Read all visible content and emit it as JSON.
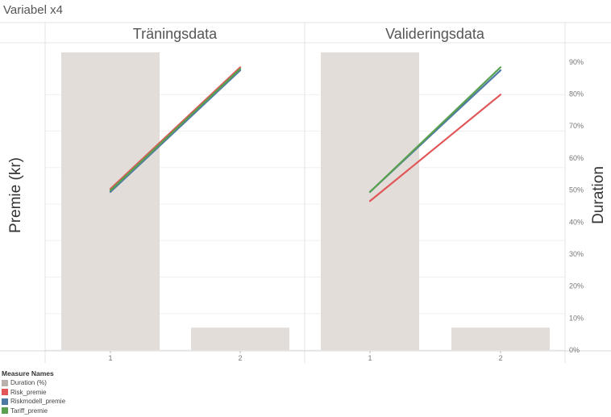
{
  "title": "Variabel x4",
  "chart_data": {
    "type": "bar+line",
    "panels": [
      "Träningsdata",
      "Valideringsdata"
    ],
    "categories": [
      "1",
      "2"
    ],
    "left_axis_title": "Premie (kr)",
    "right_axis_title": "Duration",
    "right_axis": {
      "range": [
        0,
        95
      ],
      "ticks": [
        0,
        10,
        20,
        30,
        40,
        50,
        60,
        70,
        80,
        90
      ],
      "tick_suffix": "%"
    },
    "left_axis_range": [
      0,
      100
    ],
    "bars": {
      "name": "Duration (%)",
      "color": "#e2ddd9",
      "values": {
        "Träningsdata": [
          93,
          7
        ],
        "Valideringsdata": [
          93,
          7
        ]
      }
    },
    "series": [
      {
        "name": "Risk_premie",
        "color": "#e15759",
        "values": {
          "Träningsdata": [
            53,
            93
          ],
          "Valideringsdata": [
            49,
            84
          ]
        }
      },
      {
        "name": "Riskmodell_premie",
        "color": "#4e79a7",
        "values": {
          "Träningsdata": [
            52,
            92
          ],
          "Valideringsdata": [
            52,
            92
          ]
        }
      },
      {
        "name": "Tariff_premie",
        "color": "#59a14f",
        "values": {
          "Träningsdata": [
            52.5,
            92.5
          ],
          "Valideringsdata": [
            52,
            93
          ]
        }
      }
    ],
    "legend": {
      "title": "Measure Names",
      "position": "bottom-left",
      "items": [
        {
          "label": "Duration (%)",
          "color": "#bab0ac"
        },
        {
          "label": "Risk_premie",
          "color": "#e15759"
        },
        {
          "label": "Riskmodell_premie",
          "color": "#4e79a7"
        },
        {
          "label": "Tariff_premie",
          "color": "#59a14f"
        }
      ]
    },
    "grid": true
  }
}
